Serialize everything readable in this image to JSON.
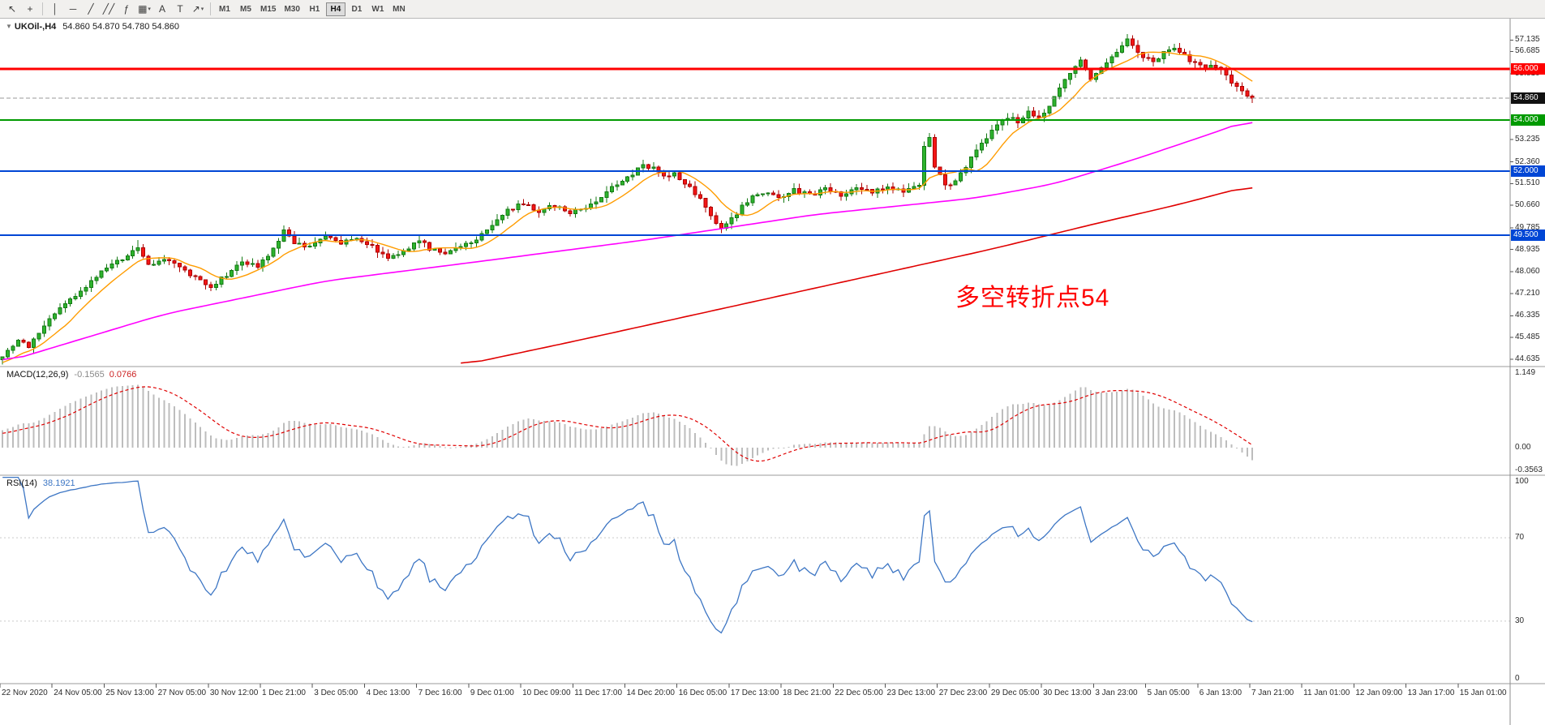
{
  "toolbar": {
    "tools": [
      {
        "name": "cursor-tool",
        "glyph": "↖"
      },
      {
        "name": "crosshair-tool",
        "glyph": "+"
      },
      {
        "name": "sep"
      },
      {
        "name": "vertical-line-tool",
        "glyph": "│"
      },
      {
        "name": "horizontal-line-tool",
        "glyph": "─"
      },
      {
        "name": "trendline-tool",
        "glyph": "╱"
      },
      {
        "name": "equidistant-channel-tool",
        "glyph": "╱╱"
      },
      {
        "name": "fibonacci-tool",
        "glyph": "ƒ"
      },
      {
        "name": "shapes-tool",
        "glyph": "▦",
        "dropdown": true
      },
      {
        "name": "text-tool",
        "glyph": "A"
      },
      {
        "name": "text-label-tool",
        "glyph": "T"
      },
      {
        "name": "arrow-objects-tool",
        "glyph": "↗",
        "dropdown": true
      },
      {
        "name": "sep"
      }
    ],
    "timeframes": [
      {
        "label": "M1",
        "active": false
      },
      {
        "label": "M5",
        "active": false
      },
      {
        "label": "M15",
        "active": false
      },
      {
        "label": "M30",
        "active": false
      },
      {
        "label": "H1",
        "active": false
      },
      {
        "label": "H4",
        "active": true
      },
      {
        "label": "D1",
        "active": false
      },
      {
        "label": "W1",
        "active": false
      },
      {
        "label": "MN",
        "active": false
      }
    ]
  },
  "chart": {
    "symbol_period": "UKOil-,H4",
    "ohlc": "54.860 54.870 54.780 54.860",
    "collapse_glyph": "▼",
    "annotation": {
      "text": "多空转折点54",
      "color": "#fe0000"
    },
    "levels": [
      {
        "label": "56.000",
        "price": 56.0,
        "color": "#ff0000",
        "width": 3
      },
      {
        "label": "54.000",
        "price": 54.0,
        "color": "#009a00",
        "width": 2
      },
      {
        "label": "52.000",
        "price": 52.0,
        "color": "#0046d5",
        "width": 2
      },
      {
        "label": "49.500",
        "price": 49.5,
        "color": "#0046d5",
        "width": 2
      }
    ],
    "bid": {
      "label": "54.860",
      "price": 54.86,
      "badge_color": "#111111",
      "line_color": "#9a9a9a"
    },
    "price_ticks": [
      "57.135",
      "56.685",
      "55.810",
      "53.235",
      "52.360",
      "51.510",
      "50.660",
      "49.785",
      "48.935",
      "48.060",
      "47.210",
      "46.335",
      "45.485",
      "44.635"
    ],
    "time_labels": [
      "22 Nov 2020",
      "24 Nov 05:00",
      "25 Nov 13:00",
      "27 Nov 05:00",
      "30 Nov 12:00",
      "1 Dec 21:00",
      "3 Dec 05:00",
      "4 Dec 13:00",
      "7 Dec 16:00",
      "9 Dec 01:00",
      "10 Dec 09:00",
      "11 Dec 17:00",
      "14 Dec 20:00",
      "16 Dec 05:00",
      "17 Dec 13:00",
      "18 Dec 21:00",
      "22 Dec 05:00",
      "23 Dec 13:00",
      "27 Dec 23:00",
      "29 Dec 05:00",
      "30 Dec 13:00",
      "3 Jan 23:00",
      "5 Jan 05:00",
      "6 Jan 13:00",
      "7 Jan 21:00",
      "11 Jan 01:00",
      "12 Jan 09:00",
      "13 Jan 17:00",
      "15 Jan 01:00"
    ],
    "chart_data": {
      "type": "candlestick",
      "symbol": "UKOil-",
      "period": "H4",
      "visible_bar_slots": 290,
      "bars_with_data": 241,
      "price_range_bottom": 44.35,
      "price_range_top": 57.87,
      "up_color": "#2db32d",
      "up_border": "#147a14",
      "down_color": "#f31616",
      "down_border": "#ad0000",
      "close_anchors": [
        [
          0,
          44.75
        ],
        [
          3,
          45.4
        ],
        [
          5,
          45.15
        ],
        [
          8,
          46.0
        ],
        [
          11,
          46.6
        ],
        [
          14,
          47.15
        ],
        [
          17,
          47.7
        ],
        [
          20,
          48.2
        ],
        [
          23,
          48.6
        ],
        [
          26,
          48.95
        ],
        [
          28,
          48.35
        ],
        [
          31,
          48.6
        ],
        [
          34,
          48.25
        ],
        [
          37,
          47.8
        ],
        [
          40,
          47.45
        ],
        [
          43,
          47.95
        ],
        [
          46,
          48.45
        ],
        [
          49,
          48.3
        ],
        [
          51,
          48.6
        ],
        [
          54,
          49.65
        ],
        [
          56,
          49.15
        ],
        [
          59,
          49.0
        ],
        [
          62,
          49.45
        ],
        [
          65,
          49.2
        ],
        [
          68,
          49.3
        ],
        [
          71,
          49.05
        ],
        [
          74,
          48.6
        ],
        [
          77,
          48.9
        ],
        [
          80,
          49.3
        ],
        [
          82,
          48.95
        ],
        [
          85,
          48.8
        ],
        [
          88,
          49.05
        ],
        [
          91,
          49.35
        ],
        [
          94,
          49.9
        ],
        [
          97,
          50.5
        ],
        [
          100,
          50.7
        ],
        [
          103,
          50.45
        ],
        [
          106,
          50.65
        ],
        [
          109,
          50.35
        ],
        [
          112,
          50.6
        ],
        [
          115,
          51.0
        ],
        [
          118,
          51.5
        ],
        [
          121,
          51.9
        ],
        [
          123,
          52.2
        ],
        [
          125,
          52.1
        ],
        [
          127,
          51.8
        ],
        [
          129,
          51.95
        ],
        [
          131,
          51.5
        ],
        [
          133,
          51.15
        ],
        [
          135,
          50.6
        ],
        [
          137,
          49.95
        ],
        [
          138,
          49.7
        ],
        [
          140,
          50.1
        ],
        [
          142,
          50.6
        ],
        [
          144,
          51.0
        ],
        [
          146,
          51.15
        ],
        [
          149,
          50.95
        ],
        [
          152,
          51.25
        ],
        [
          155,
          51.05
        ],
        [
          158,
          51.3
        ],
        [
          161,
          51.1
        ],
        [
          164,
          51.35
        ],
        [
          167,
          51.15
        ],
        [
          170,
          51.4
        ],
        [
          173,
          51.2
        ],
        [
          176,
          51.5
        ],
        [
          177,
          53.0
        ],
        [
          178,
          53.25
        ],
        [
          179,
          52.2
        ],
        [
          181,
          51.4
        ],
        [
          183,
          51.55
        ],
        [
          185,
          52.2
        ],
        [
          187,
          52.8
        ],
        [
          189,
          53.3
        ],
        [
          191,
          53.8
        ],
        [
          193,
          54.15
        ],
        [
          195,
          53.95
        ],
        [
          197,
          54.3
        ],
        [
          199,
          54.1
        ],
        [
          201,
          54.6
        ],
        [
          203,
          55.3
        ],
        [
          205,
          55.9
        ],
        [
          207,
          56.4
        ],
        [
          209,
          55.6
        ],
        [
          211,
          56.0
        ],
        [
          213,
          56.45
        ],
        [
          215,
          56.9
        ],
        [
          216,
          57.15
        ],
        [
          217,
          56.9
        ],
        [
          219,
          56.5
        ],
        [
          221,
          56.3
        ],
        [
          223,
          56.6
        ],
        [
          225,
          56.8
        ],
        [
          227,
          56.5
        ],
        [
          229,
          56.2
        ],
        [
          231,
          56.0
        ],
        [
          233,
          56.15
        ],
        [
          235,
          55.7
        ],
        [
          237,
          55.3
        ],
        [
          239,
          54.95
        ],
        [
          240,
          54.86
        ]
      ],
      "forced_extremes": [
        [
          26,
          "high",
          49.3
        ],
        [
          40,
          "low",
          47.3
        ],
        [
          138,
          "low",
          49.58
        ],
        [
          177,
          "high",
          53.1
        ],
        [
          178,
          "high",
          53.42
        ],
        [
          216,
          "high",
          57.37
        ]
      ],
      "moving_averages": [
        {
          "name": "ma-fast",
          "color": "#ff9c00",
          "method": "sma9_of_closes"
        },
        {
          "name": "ma-mid",
          "color": "#ff00ff",
          "anchors": [
            [
              0,
              44.5
            ],
            [
              31,
              46.4
            ],
            [
              62,
              47.7
            ],
            [
              93,
              48.5
            ],
            [
              125,
              49.35
            ],
            [
              156,
              50.3
            ],
            [
              187,
              50.95
            ],
            [
              202,
              51.5
            ],
            [
              218,
              52.5
            ],
            [
              234,
              53.6
            ],
            [
              240,
              54.05
            ]
          ]
        },
        {
          "name": "ma-slow",
          "color": "#e00000",
          "anchors": [
            [
              88,
              44.4
            ],
            [
              110,
              45.35
            ],
            [
              130,
              46.25
            ],
            [
              150,
              47.15
            ],
            [
              170,
              48.05
            ],
            [
              190,
              48.95
            ],
            [
              210,
              49.95
            ],
            [
              225,
              50.65
            ],
            [
              240,
              51.45
            ]
          ]
        }
      ]
    }
  },
  "indicators": {
    "macd": {
      "name": "MACD(12,26,9)",
      "value_main": "-0.1565",
      "value_signal": "0.0766",
      "axis_ticks": [
        {
          "label": "1.149",
          "value": 1.149
        },
        {
          "label": "0.00",
          "value": 0
        },
        {
          "label": "-0.3563",
          "value": -0.3563
        }
      ],
      "histogram_color": "#bdbdbd",
      "signal_color": "#e00000"
    },
    "rsi": {
      "name": "RSI(14)",
      "value": "38.1921",
      "axis_ticks": [
        {
          "label": "100",
          "value": 100
        },
        {
          "label": "70",
          "value": 70
        },
        {
          "label": "30",
          "value": 30
        },
        {
          "label": "0",
          "value": 0
        }
      ],
      "line_color": "#3d76c4",
      "level_lines": [
        70,
        30
      ]
    }
  }
}
